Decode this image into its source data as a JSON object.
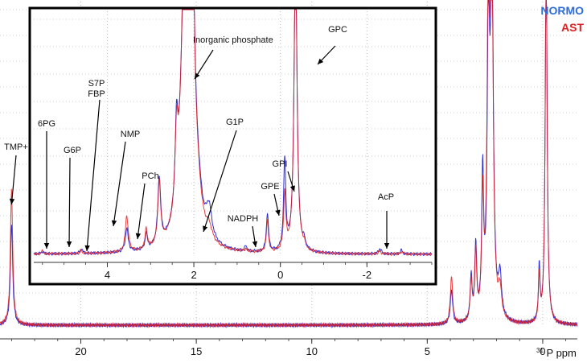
{
  "chart_data": [
    {
      "type": "line",
      "title": "",
      "xlabel": "31P ppm",
      "xlabel_parts": {
        "superscript": "31",
        "text": "P ppm"
      },
      "x_reversed": true,
      "xlim": [
        23.5,
        -1.5
      ],
      "xticks": [
        20,
        15,
        10,
        5,
        0
      ],
      "grid": true,
      "legend_position": "top-right",
      "colors": {
        "NORMO": "#2f2fd6",
        "AST": "#e02020"
      },
      "series": [
        {
          "name": "NORMO",
          "peaks": [
            {
              "ppm": 23.0,
              "height": 0.3,
              "width": 0.06
            },
            {
              "ppm": 3.95,
              "height": 0.1,
              "width": 0.06
            },
            {
              "ppm": 3.1,
              "height": 0.13,
              "width": 0.05
            },
            {
              "ppm": 2.9,
              "height": 0.22,
              "width": 0.05
            },
            {
              "ppm": 2.6,
              "height": 0.42,
              "width": 0.05
            },
            {
              "ppm": 2.35,
              "height": 0.85,
              "width": 0.06
            },
            {
              "ppm": 2.2,
              "height": 1.1,
              "width": 0.07
            },
            {
              "ppm": 1.85,
              "height": 0.12,
              "width": 0.08
            },
            {
              "ppm": 0.15,
              "height": 0.16,
              "width": 0.04
            },
            {
              "ppm": -0.15,
              "height": 1.1,
              "width": 0.05
            }
          ]
        },
        {
          "name": "AST",
          "peaks": [
            {
              "ppm": 23.0,
              "height": 0.4,
              "width": 0.06
            },
            {
              "ppm": 3.95,
              "height": 0.14,
              "width": 0.06
            },
            {
              "ppm": 3.1,
              "height": 0.12,
              "width": 0.05
            },
            {
              "ppm": 2.9,
              "height": 0.2,
              "width": 0.05
            },
            {
              "ppm": 2.6,
              "height": 0.35,
              "width": 0.05
            },
            {
              "ppm": 2.35,
              "height": 1.1,
              "width": 0.06
            },
            {
              "ppm": 2.2,
              "height": 1.0,
              "width": 0.07
            },
            {
              "ppm": 1.85,
              "height": 0.08,
              "width": 0.08
            },
            {
              "ppm": 0.15,
              "height": 0.14,
              "width": 0.04
            },
            {
              "ppm": -0.15,
              "height": 1.1,
              "width": 0.05
            }
          ]
        }
      ],
      "annotations": [
        {
          "label": "TMP+",
          "ppm": 23.0
        }
      ]
    },
    {
      "type": "line",
      "title": "",
      "xlabel": "",
      "x_reversed": true,
      "xlim": [
        5.7,
        -3.5
      ],
      "xticks": [
        4,
        2,
        0,
        -2
      ],
      "grid": true,
      "series": [
        {
          "name": "NORMO",
          "peaks": [
            {
              "ppm": 5.5,
              "height": 0.01,
              "width": 0.03
            },
            {
              "ppm": 4.6,
              "height": 0.02,
              "width": 0.03
            },
            {
              "ppm": 3.55,
              "height": 0.09,
              "width": 0.04
            },
            {
              "ppm": 3.1,
              "height": 0.06,
              "width": 0.03
            },
            {
              "ppm": 2.8,
              "height": 0.26,
              "width": 0.04
            },
            {
              "ppm": 2.4,
              "height": 0.3,
              "width": 0.04
            },
            {
              "ppm": 2.2,
              "height": 1.2,
              "width": 0.1
            },
            {
              "ppm": 2.05,
              "height": 1.2,
              "width": 0.07
            },
            {
              "ppm": 1.9,
              "height": 0.1,
              "width": 0.1
            },
            {
              "ppm": 1.65,
              "height": 0.12,
              "width": 0.08
            },
            {
              "ppm": 0.8,
              "height": 0.02,
              "width": 0.03
            },
            {
              "ppm": 0.3,
              "height": 0.15,
              "width": 0.03
            },
            {
              "ppm": -0.1,
              "height": 0.35,
              "width": 0.03
            },
            {
              "ppm": -0.35,
              "height": 1.2,
              "width": 0.04
            },
            {
              "ppm": -0.55,
              "height": 0.03,
              "width": 0.03
            },
            {
              "ppm": -2.3,
              "height": 0.02,
              "width": 0.04
            },
            {
              "ppm": -2.8,
              "height": 0.015,
              "width": 0.03
            }
          ]
        },
        {
          "name": "AST",
          "peaks": [
            {
              "ppm": 5.5,
              "height": 0.01,
              "width": 0.03
            },
            {
              "ppm": 4.6,
              "height": 0.01,
              "width": 0.03
            },
            {
              "ppm": 3.55,
              "height": 0.14,
              "width": 0.04
            },
            {
              "ppm": 3.1,
              "height": 0.08,
              "width": 0.03
            },
            {
              "ppm": 2.8,
              "height": 0.24,
              "width": 0.04
            },
            {
              "ppm": 2.4,
              "height": 0.28,
              "width": 0.04
            },
            {
              "ppm": 2.2,
              "height": 1.2,
              "width": 0.1
            },
            {
              "ppm": 2.05,
              "height": 1.2,
              "width": 0.07
            },
            {
              "ppm": 1.9,
              "height": 0.08,
              "width": 0.1
            },
            {
              "ppm": 1.65,
              "height": 0.05,
              "width": 0.08
            },
            {
              "ppm": 0.8,
              "height": 0.01,
              "width": 0.03
            },
            {
              "ppm": 0.3,
              "height": 0.12,
              "width": 0.03
            },
            {
              "ppm": -0.1,
              "height": 0.22,
              "width": 0.03
            },
            {
              "ppm": -0.35,
              "height": 1.2,
              "width": 0.04
            },
            {
              "ppm": -0.55,
              "height": 0.02,
              "width": 0.03
            },
            {
              "ppm": -2.3,
              "height": 0.01,
              "width": 0.04
            },
            {
              "ppm": -2.8,
              "height": 0.01,
              "width": 0.03
            }
          ]
        }
      ],
      "annotations": [
        {
          "label": "6PG",
          "label2": "",
          "ppm": 5.55
        },
        {
          "label": "G6P",
          "label2": "",
          "ppm": 4.6
        },
        {
          "label": "S7P",
          "label2": "FBP",
          "ppm": 4.0
        },
        {
          "label": "NMP",
          "label2": "",
          "ppm": 3.55
        },
        {
          "label": "PCh",
          "label2": "",
          "ppm": 3.1
        },
        {
          "label": "Inorganic phosphate",
          "label2": "",
          "ppm": 2.05
        },
        {
          "label": "G1P",
          "label2": "",
          "ppm": 1.65
        },
        {
          "label": "NADPH",
          "label2": "",
          "ppm": 0.75
        },
        {
          "label": "GPE",
          "label2": "",
          "ppm": 0.3
        },
        {
          "label": "GPI",
          "label2": "",
          "ppm": -0.1
        },
        {
          "label": "GPC",
          "label2": "",
          "ppm": -0.35
        },
        {
          "label": "AcP",
          "label2": "",
          "ppm": -2.1
        }
      ]
    }
  ]
}
